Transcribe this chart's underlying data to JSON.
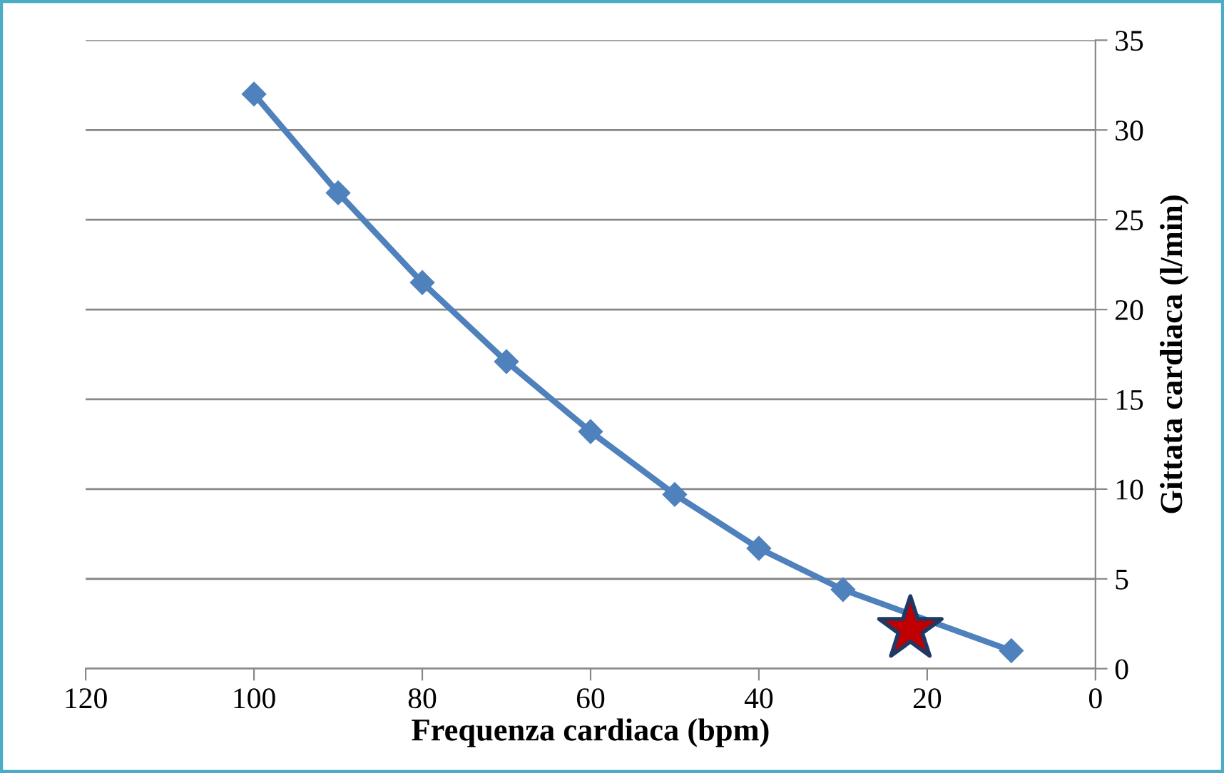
{
  "chart_data": {
    "type": "line",
    "xlabel": "Frequenza cardiaca (bpm)",
    "ylabel": "Gittata cardiaca (l/min)",
    "xlim": [
      120,
      0
    ],
    "xticks": [
      120,
      100,
      80,
      60,
      40,
      20,
      0
    ],
    "ylim": [
      0,
      35
    ],
    "yticks": [
      0,
      5,
      10,
      15,
      20,
      25,
      30,
      35
    ],
    "grid": "y",
    "legend": false,
    "series": [
      {
        "color": "#4f81bd",
        "marker": "diamond",
        "line_style": "solid",
        "x": [
          100,
          90,
          80,
          70,
          60,
          50,
          40,
          30,
          10
        ],
        "values": [
          32,
          26.5,
          21.5,
          17.1,
          13.2,
          9.7,
          6.7,
          4.4,
          1.0
        ]
      },
      {
        "type": "scatter",
        "color": "#c00000",
        "marker": "star",
        "x": [
          22
        ],
        "values": [
          2.2
        ]
      }
    ]
  }
}
